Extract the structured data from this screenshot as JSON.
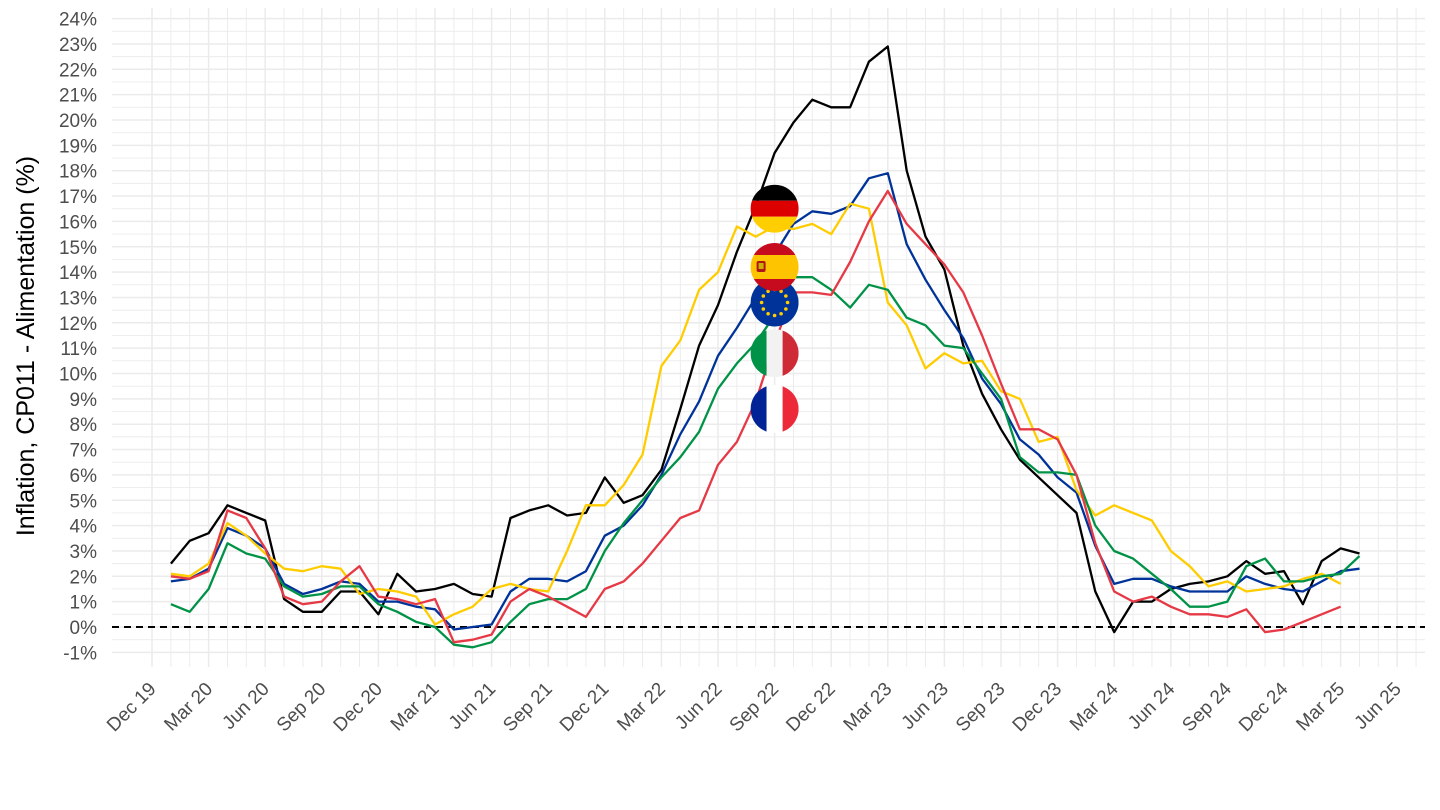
{
  "chart_data": {
    "type": "line",
    "title": "",
    "xlabel": "",
    "ylabel": "Inflation, CP011 - Alimentation (%)",
    "ylim": [
      -1,
      24
    ],
    "y_ticks": [
      -1,
      0,
      1,
      2,
      3,
      4,
      5,
      6,
      7,
      8,
      9,
      10,
      11,
      12,
      13,
      14,
      15,
      16,
      17,
      18,
      19,
      20,
      21,
      22,
      23,
      24
    ],
    "y_tick_suffix": "%",
    "x_start": "Dec 19",
    "x_end": "Jun 25",
    "x_ticks": [
      "Dec 19",
      "Mar 20",
      "Jun 20",
      "Sep 20",
      "Dec 20",
      "Mar 21",
      "Jun 21",
      "Sep 21",
      "Dec 21",
      "Mar 22",
      "Jun 22",
      "Sep 22",
      "Dec 22",
      "Mar 23",
      "Jun 23",
      "Sep 23",
      "Dec 23",
      "Mar 24",
      "Jun 24",
      "Sep 24",
      "Dec 24",
      "Mar 25",
      "Jun 25"
    ],
    "first_month": "Jan 20",
    "grid": true,
    "legend": "flag icons placed at Sep 22 (Allemagne, Espagne, Zone euro, Italie, France)",
    "reference_line": {
      "y": 0,
      "style": "dashed"
    },
    "series": [
      {
        "color": "#000000",
        "flag": "germany-flag",
        "flag_y": 16.5,
        "values": [
          2.5,
          3.4,
          3.7,
          4.8,
          4.5,
          4.2,
          1.1,
          0.6,
          0.6,
          1.4,
          1.4,
          0.5,
          2.1,
          1.4,
          1.5,
          1.7,
          1.3,
          1.2,
          4.3,
          4.6,
          4.8,
          4.4,
          4.5,
          5.9,
          4.9,
          5.2,
          6.2,
          8.6,
          11.1,
          12.7,
          14.8,
          16.6,
          18.7,
          19.9,
          20.8,
          20.5,
          20.5,
          22.3,
          22.9,
          18.0,
          15.4,
          14.1,
          11.1,
          9.2,
          7.8,
          6.6,
          5.9,
          5.2,
          4.5,
          1.4,
          -0.2,
          1.0,
          1.0,
          1.5,
          1.7,
          1.8,
          2.0,
          2.6,
          2.1,
          2.2,
          0.9,
          2.6,
          3.1,
          2.9
        ]
      },
      {
        "color": "#003399",
        "flag": "euro-area-flag",
        "flag_y": 12.8,
        "values": [
          1.8,
          1.9,
          2.3,
          3.9,
          3.6,
          3.1,
          1.7,
          1.3,
          1.5,
          1.8,
          1.7,
          1.0,
          1.0,
          0.8,
          0.7,
          -0.1,
          0.0,
          0.1,
          1.4,
          1.9,
          1.9,
          1.8,
          2.2,
          3.6,
          4.0,
          4.8,
          6.0,
          7.6,
          8.9,
          10.7,
          11.8,
          13.0,
          14.7,
          15.9,
          16.4,
          16.3,
          16.6,
          17.7,
          17.9,
          15.1,
          13.7,
          12.5,
          11.4,
          9.8,
          8.8,
          7.4,
          6.8,
          5.9,
          5.3,
          3.2,
          1.7,
          1.9,
          1.9,
          1.6,
          1.4,
          1.4,
          1.4,
          2.0,
          1.7,
          1.5,
          1.4,
          1.8,
          2.2,
          2.3
        ]
      },
      {
        "color": "#ffcc00",
        "flag": "spain-flag",
        "flag_y": 14.2,
        "values": [
          2.1,
          2.0,
          2.5,
          4.1,
          3.6,
          2.9,
          2.3,
          2.2,
          2.4,
          2.3,
          1.3,
          1.5,
          1.4,
          1.2,
          0.1,
          0.5,
          0.8,
          1.5,
          1.7,
          1.5,
          1.4,
          3.0,
          4.8,
          4.8,
          5.6,
          6.8,
          10.3,
          11.3,
          13.3,
          14.0,
          15.8,
          15.4,
          15.8,
          15.7,
          15.9,
          15.5,
          16.7,
          16.5,
          12.8,
          11.9,
          10.2,
          10.8,
          10.4,
          10.5,
          9.3,
          9.0,
          7.3,
          7.5,
          5.4,
          4.4,
          4.8,
          4.5,
          4.2,
          3.0,
          2.4,
          1.6,
          1.8,
          1.4,
          1.5,
          1.6,
          1.9,
          2.1,
          1.7
        ]
      },
      {
        "color": "#009246",
        "flag": "italy-flag",
        "flag_y": 10.8,
        "values": [
          0.9,
          0.6,
          1.5,
          3.3,
          2.9,
          2.7,
          1.6,
          1.2,
          1.3,
          1.6,
          1.6,
          0.9,
          0.6,
          0.2,
          0.0,
          -0.7,
          -0.8,
          -0.6,
          0.2,
          0.9,
          1.1,
          1.1,
          1.5,
          3.0,
          4.1,
          5.0,
          5.9,
          6.7,
          7.7,
          9.4,
          10.4,
          11.2,
          12.3,
          13.8,
          13.8,
          13.3,
          12.6,
          13.5,
          13.3,
          12.2,
          11.9,
          11.1,
          11.0,
          10.0,
          9.0,
          6.7,
          6.1,
          6.1,
          6.0,
          4.0,
          3.0,
          2.7,
          2.1,
          1.5,
          0.8,
          0.8,
          1.0,
          2.4,
          2.7,
          1.8,
          1.8,
          2.0,
          2.1,
          2.8
        ]
      },
      {
        "color": "#e63946",
        "flag": "france-flag",
        "flag_y": 8.6,
        "values": [
          2.0,
          1.9,
          2.2,
          4.6,
          4.3,
          3.1,
          1.2,
          0.9,
          1.0,
          1.8,
          2.4,
          1.2,
          1.1,
          0.9,
          1.1,
          -0.6,
          -0.5,
          -0.3,
          1.0,
          1.5,
          1.2,
          0.8,
          0.4,
          1.5,
          1.8,
          2.5,
          3.4,
          4.3,
          4.6,
          6.4,
          7.3,
          8.9,
          11.2,
          13.2,
          13.2,
          13.1,
          14.4,
          16.0,
          17.2,
          15.9,
          15.1,
          14.3,
          13.2,
          11.5,
          9.6,
          7.8,
          7.8,
          7.4,
          6.0,
          3.3,
          1.4,
          1.0,
          1.2,
          0.8,
          0.5,
          0.5,
          0.4,
          0.7,
          -0.2,
          -0.1,
          0.2,
          0.5,
          0.8
        ]
      }
    ]
  }
}
